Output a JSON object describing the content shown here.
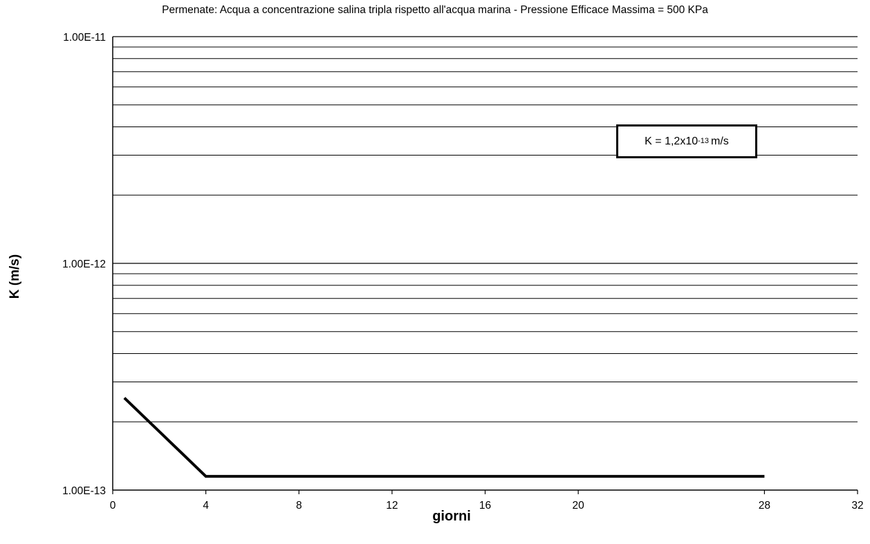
{
  "chart_data": {
    "type": "line",
    "title": "Permenate: Acqua a concentrazione salina tripla rispetto all'acqua marina - Pressione Efficace Massima = 500 KPa",
    "xlabel": "giorni",
    "ylabel": "K (m/s)",
    "xlim": [
      0,
      32
    ],
    "ylim": [
      1e-13,
      1e-11
    ],
    "yscale": "log",
    "grid": "horizontal",
    "x_ticks": [
      "0",
      "4",
      "8",
      "12",
      "16",
      "20",
      "28",
      "32"
    ],
    "x_tick_values": [
      0,
      4,
      8,
      12,
      16,
      20,
      28,
      32
    ],
    "y_ticks": [
      "1.00E-11",
      "1.00E-12",
      "1.00E-13"
    ],
    "y_tick_values": [
      1e-11,
      1e-12,
      1e-13
    ],
    "series": [
      {
        "x": [
          0.5,
          4,
          28
        ],
        "y": [
          2.55e-13,
          1.15e-13,
          1.15e-13
        ]
      }
    ],
    "annotation": {
      "prefix": "K = 1,2x10",
      "exponent": "-13",
      "suffix": "m/s"
    }
  }
}
